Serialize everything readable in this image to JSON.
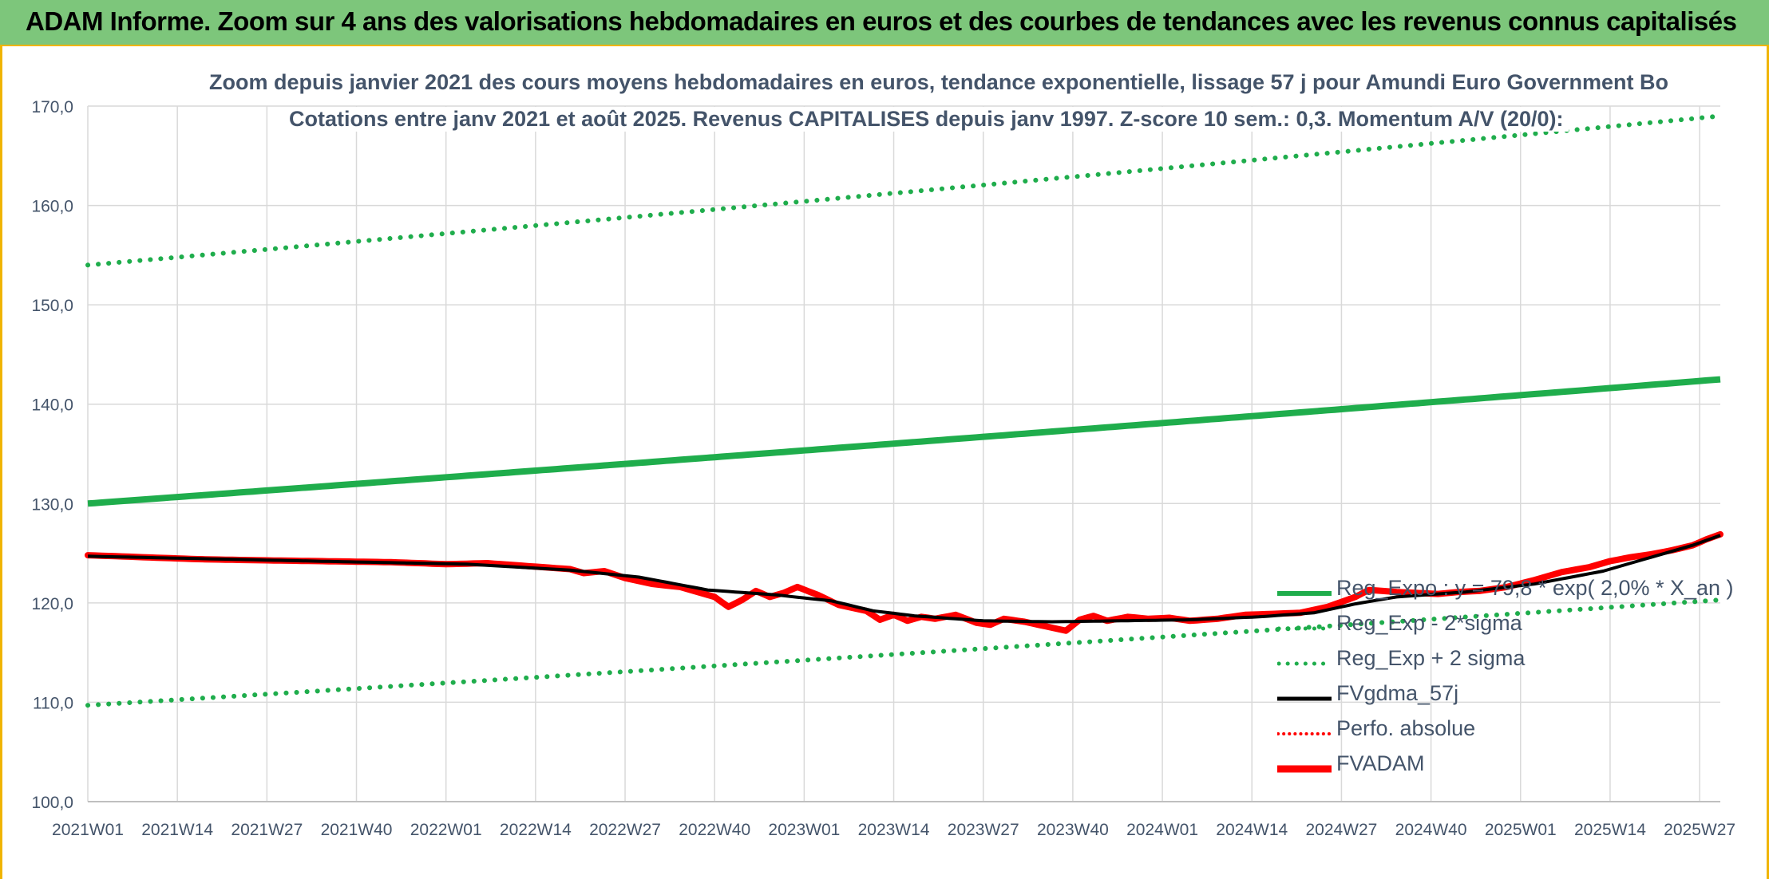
{
  "banner": {
    "title": "ADAM Informe. Zoom sur 4 ans des valorisations hebdomadaires en euros et des courbes de tendances avec les revenus connus capitalisés"
  },
  "colors": {
    "banner_bg": "#7dc67b",
    "frame_border": "#f0b400",
    "trend_green": "#1fad4c",
    "band_green": "#1fad4c",
    "fvadam_red": "#ff0000",
    "smooth_black": "#000000",
    "text_gray": "#44546a"
  },
  "chart_data": {
    "type": "line",
    "title_line1": "Zoom depuis janvier 2021 des cours moyens hebdomadaires en euros, tendance exponentielle, lissage 57 j pour Amundi Euro Government Bo",
    "title_line2": "Cotations entre janv 2021 et août 2025. Revenus CAPITALISES depuis janv 1997. Z-score 10 sem.: 0,3. Momentum A/V (20/0):",
    "ylim": [
      100,
      170
    ],
    "yticks": [
      "100,0",
      "110,0",
      "120,0",
      "130,0",
      "140,0",
      "150,0",
      "160,0",
      "170,0"
    ],
    "x_tick_labels": [
      "2021W01",
      "2021W14",
      "2021W27",
      "2021W40",
      "2022W01",
      "2022W14",
      "2022W27",
      "2022W40",
      "2023W01",
      "2023W14",
      "2023W27",
      "2023W40",
      "2024W01",
      "2024W14",
      "2024W27",
      "2024W40",
      "2025W01",
      "2025W14",
      "2025W27"
    ],
    "x_label_step_weeks": 13,
    "n_weeks": 238,
    "grid": true,
    "legend_position": "bottom-right",
    "legend": [
      {
        "label": "Reg_Expo : y = 79,8 * exp( 2,0% *  X_an )",
        "style": "solid-thick-green"
      },
      {
        "label": "Reg_Exp - 2*sigma",
        "style": "dotted-green"
      },
      {
        "label": "Reg_Exp + 2 sigma",
        "style": "dotted-green"
      },
      {
        "label": "FVgdma_57j",
        "style": "solid-black"
      },
      {
        "label": "Perfo. absolue",
        "style": "dotted-red"
      },
      {
        "label": "FVADAM",
        "style": "solid-thick-red"
      }
    ],
    "series": [
      {
        "name": "Reg_Expo : y = 79,8 * exp( 2,0% *  X_an )",
        "start": 130.0,
        "end": 142.5
      },
      {
        "name": "Reg_Exp - 2*sigma",
        "start": 109.7,
        "end": 120.3
      },
      {
        "name": "Reg_Exp + 2 sigma",
        "start": 154.0,
        "end": 169.0
      },
      {
        "name": "FVADAM",
        "keypoints": [
          [
            0,
            124.8
          ],
          [
            8,
            124.6
          ],
          [
            16,
            124.4
          ],
          [
            24,
            124.3
          ],
          [
            34,
            124.2
          ],
          [
            44,
            124.1
          ],
          [
            52,
            123.9
          ],
          [
            58,
            124.0
          ],
          [
            62,
            123.8
          ],
          [
            66,
            123.6
          ],
          [
            70,
            123.4
          ],
          [
            72,
            123.0
          ],
          [
            75,
            123.2
          ],
          [
            78,
            122.5
          ],
          [
            82,
            121.9
          ],
          [
            86,
            121.6
          ],
          [
            88,
            121.2
          ],
          [
            91,
            120.6
          ],
          [
            93,
            119.6
          ],
          [
            95,
            120.3
          ],
          [
            97,
            121.2
          ],
          [
            99,
            120.6
          ],
          [
            101,
            121.0
          ],
          [
            103,
            121.6
          ],
          [
            106,
            120.8
          ],
          [
            109,
            119.8
          ],
          [
            113,
            119.2
          ],
          [
            115,
            118.3
          ],
          [
            117,
            118.8
          ],
          [
            119,
            118.2
          ],
          [
            121,
            118.6
          ],
          [
            123,
            118.4
          ],
          [
            126,
            118.8
          ],
          [
            129,
            118.0
          ],
          [
            131,
            117.8
          ],
          [
            133,
            118.4
          ],
          [
            136,
            118.1
          ],
          [
            140,
            117.5
          ],
          [
            142,
            117.2
          ],
          [
            144,
            118.3
          ],
          [
            146,
            118.7
          ],
          [
            148,
            118.2
          ],
          [
            151,
            118.6
          ],
          [
            154,
            118.4
          ],
          [
            157,
            118.5
          ],
          [
            160,
            118.2
          ],
          [
            164,
            118.4
          ],
          [
            168,
            118.8
          ],
          [
            172,
            118.9
          ],
          [
            176,
            119.0
          ],
          [
            180,
            119.6
          ],
          [
            184,
            120.6
          ],
          [
            186,
            121.3
          ],
          [
            188,
            121.2
          ],
          [
            190,
            121.1
          ],
          [
            193,
            121.0
          ],
          [
            196,
            120.9
          ],
          [
            199,
            121.1
          ],
          [
            202,
            121.2
          ],
          [
            206,
            121.6
          ],
          [
            210,
            122.3
          ],
          [
            214,
            123.1
          ],
          [
            218,
            123.6
          ],
          [
            221,
            124.2
          ],
          [
            224,
            124.6
          ],
          [
            227,
            124.9
          ],
          [
            230,
            125.3
          ],
          [
            233,
            125.8
          ],
          [
            235,
            126.4
          ],
          [
            237,
            126.9
          ]
        ]
      },
      {
        "name": "FVgdma_57j",
        "keypoints": [
          [
            0,
            124.7
          ],
          [
            20,
            124.4
          ],
          [
            40,
            124.1
          ],
          [
            55,
            123.9
          ],
          [
            70,
            123.3
          ],
          [
            80,
            122.6
          ],
          [
            90,
            121.3
          ],
          [
            100,
            120.8
          ],
          [
            108,
            120.2
          ],
          [
            114,
            119.2
          ],
          [
            120,
            118.7
          ],
          [
            130,
            118.2
          ],
          [
            140,
            118.1
          ],
          [
            150,
            118.2
          ],
          [
            160,
            118.3
          ],
          [
            170,
            118.6
          ],
          [
            178,
            119.0
          ],
          [
            184,
            119.9
          ],
          [
            190,
            120.6
          ],
          [
            200,
            121.1
          ],
          [
            210,
            121.9
          ],
          [
            220,
            123.2
          ],
          [
            228,
            124.8
          ],
          [
            233,
            125.8
          ],
          [
            237,
            126.8
          ]
        ]
      }
    ]
  }
}
